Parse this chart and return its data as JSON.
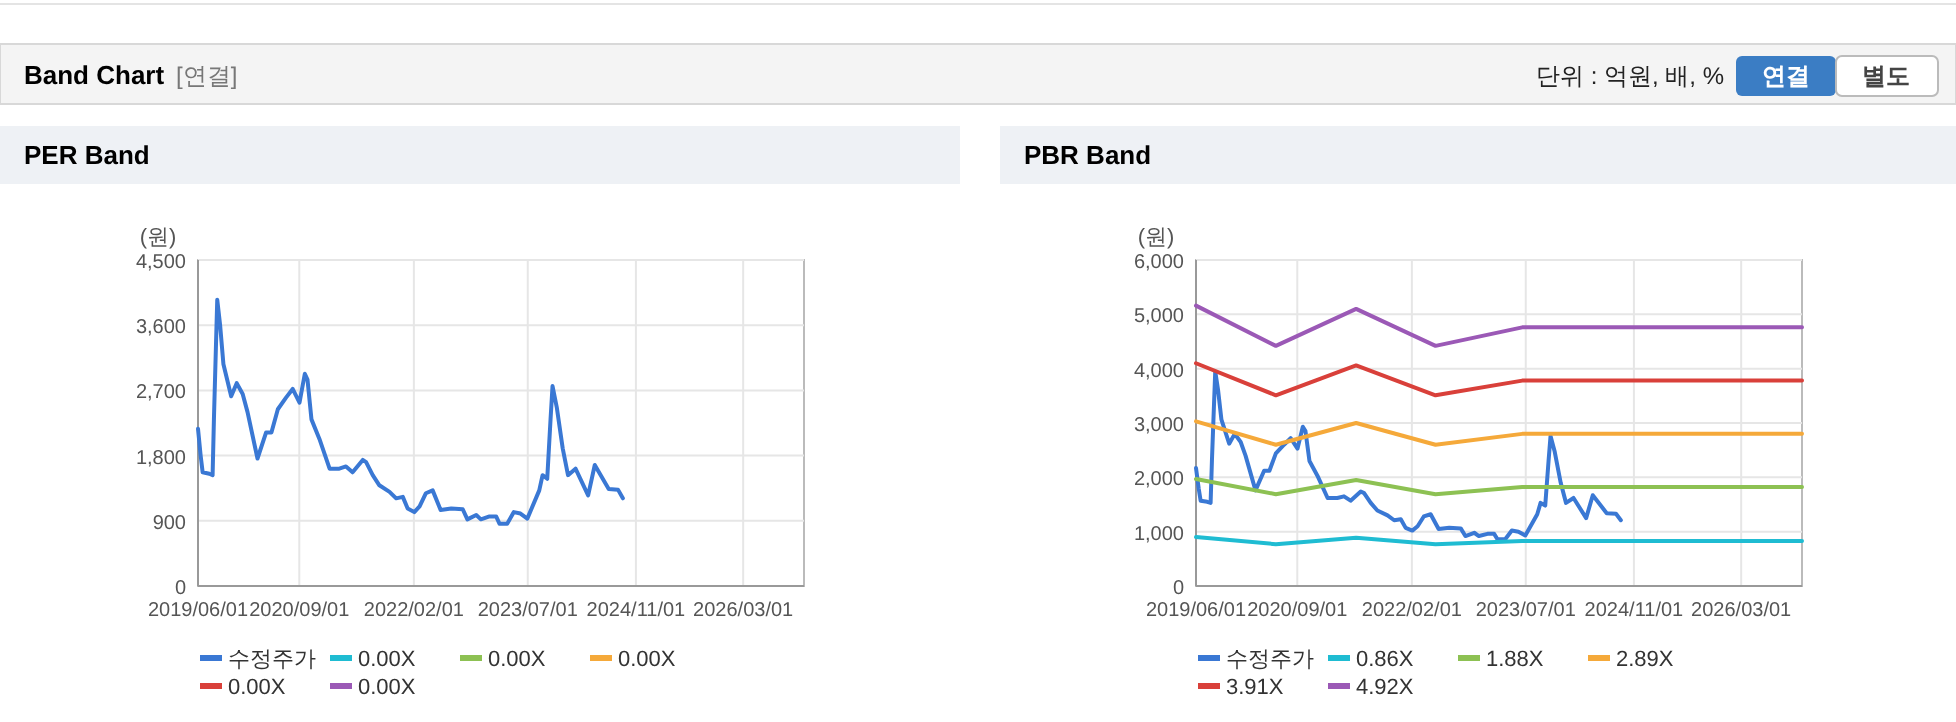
{
  "chart_data": [
    {
      "type": "other",
      "title": "Band Chart",
      "annotations": [
        "[연결]",
        "단위 : 억원, 배, %",
        "연결",
        "별도"
      ]
    },
    {
      "type": "line",
      "title": "PER Band",
      "ylabel": "(원)",
      "xlim": [
        "2019-06-01",
        "2026-12-01"
      ],
      "xticks": [
        {
          "value": "2019-06-01",
          "label": "2019/06/01"
        },
        {
          "value": "2020-09-01",
          "label": "2020/09/01"
        },
        {
          "value": "2022-02-01",
          "label": "2022/02/01"
        },
        {
          "value": "2023-07-01",
          "label": "2023/07/01"
        },
        {
          "value": "2024-11-01",
          "label": "2024/11/01"
        },
        {
          "value": "2026-03-01",
          "label": "2026/03/01"
        }
      ],
      "ylim": [
        0,
        4500
      ],
      "yticks": [
        {
          "value": 0,
          "label": "0"
        },
        {
          "value": 900,
          "label": "900"
        },
        {
          "value": 1800,
          "label": "1,800"
        },
        {
          "value": 2700,
          "label": "2,700"
        },
        {
          "value": 3600,
          "label": "3,600"
        },
        {
          "value": 4500,
          "label": "4,500"
        }
      ],
      "grid": true,
      "legend": "bottom",
      "marker": "none",
      "line_style": "solid",
      "x": [
        "2019-06-01",
        "2019-06-13",
        "2019-06-22",
        "2019-07-22",
        "2019-08-06",
        "2019-08-12",
        "2019-08-21",
        "2019-08-27",
        "2019-09-09",
        "2019-09-24",
        "2019-10-29",
        "2019-11-23",
        "2019-12-20",
        "2020-01-11",
        "2020-02-25",
        "2020-04-04",
        "2020-04-28",
        "2020-05-27",
        "2020-07-03",
        "2020-08-02",
        "2020-09-02",
        "2020-09-26",
        "2020-10-08",
        "2020-10-26",
        "2020-12-01",
        "2021-01-16",
        "2021-03-01",
        "2021-03-31",
        "2021-04-30",
        "2021-06-15",
        "2021-06-30",
        "2021-07-30",
        "2021-08-29",
        "2021-10-14",
        "2021-11-13",
        "2021-12-13",
        "2022-01-04",
        "2022-02-03",
        "2022-02-27",
        "2022-03-27",
        "2022-04-27",
        "2022-06-02",
        "2022-07-20",
        "2022-09-10",
        "2022-10-01",
        "2022-11-10",
        "2022-12-01",
        "2023-01-09",
        "2023-02-08",
        "2023-02-23",
        "2023-03-30",
        "2023-04-29",
        "2023-05-29",
        "2023-06-29",
        "2023-08-22",
        "2023-09-06",
        "2023-09-27",
        "2023-10-12",
        "2023-10-21",
        "2023-11-09",
        "2023-12-06",
        "2023-12-30",
        "2024-02-02",
        "2024-03-30",
        "2024-04-29",
        "2024-07-01",
        "2024-08-12",
        "2024-09-03"
      ],
      "series": [
        {
          "name": "수정주가",
          "color": "#3a78d4",
          "values": [
            2170,
            1800,
            1570,
            1550,
            1530,
            2300,
            3300,
            3950,
            3600,
            3060,
            2620,
            2800,
            2650,
            2400,
            1760,
            2120,
            2120,
            2440,
            2600,
            2720,
            2530,
            2930,
            2850,
            2300,
            2030,
            1620,
            1620,
            1650,
            1570,
            1740,
            1710,
            1530,
            1390,
            1300,
            1210,
            1230,
            1070,
            1020,
            1100,
            1280,
            1320,
            1050,
            1070,
            1060,
            920,
            980,
            920,
            960,
            960,
            860,
            860,
            1020,
            1000,
            930,
            1320,
            1530,
            1480,
            2300,
            2760,
            2470,
            1900,
            1530,
            1620,
            1250,
            1670,
            1340,
            1330,
            1210
          ]
        },
        {
          "name": "0.00X",
          "color": "#1fbcd2",
          "values": [
            null,
            null,
            null,
            null,
            null,
            null,
            null,
            null,
            null,
            null,
            null,
            null,
            null,
            null,
            null,
            null,
            null,
            null,
            null,
            null,
            null,
            null,
            null,
            null,
            null,
            null,
            null,
            null,
            null,
            null,
            null,
            null,
            null,
            null,
            null,
            null,
            null,
            null,
            null,
            null,
            null,
            null,
            null,
            null,
            null,
            null,
            null,
            null,
            null,
            null,
            null,
            null,
            null,
            null,
            null,
            null,
            null,
            null,
            null,
            null,
            null,
            null,
            null,
            null,
            null,
            null,
            null,
            null
          ]
        },
        {
          "name": "0.00X",
          "color": "#8dc153",
          "values": [
            null,
            null,
            null,
            null,
            null,
            null,
            null,
            null,
            null,
            null,
            null,
            null,
            null,
            null,
            null,
            null,
            null,
            null,
            null,
            null,
            null,
            null,
            null,
            null,
            null,
            null,
            null,
            null,
            null,
            null,
            null,
            null,
            null,
            null,
            null,
            null,
            null,
            null,
            null,
            null,
            null,
            null,
            null,
            null,
            null,
            null,
            null,
            null,
            null,
            null,
            null,
            null,
            null,
            null,
            null,
            null,
            null,
            null,
            null,
            null,
            null,
            null,
            null,
            null,
            null,
            null,
            null,
            null
          ]
        },
        {
          "name": "0.00X",
          "color": "#f5a93a",
          "values": [
            null,
            null,
            null,
            null,
            null,
            null,
            null,
            null,
            null,
            null,
            null,
            null,
            null,
            null,
            null,
            null,
            null,
            null,
            null,
            null,
            null,
            null,
            null,
            null,
            null,
            null,
            null,
            null,
            null,
            null,
            null,
            null,
            null,
            null,
            null,
            null,
            null,
            null,
            null,
            null,
            null,
            null,
            null,
            null,
            null,
            null,
            null,
            null,
            null,
            null,
            null,
            null,
            null,
            null,
            null,
            null,
            null,
            null,
            null,
            null,
            null,
            null,
            null,
            null,
            null,
            null,
            null,
            null
          ]
        },
        {
          "name": "0.00X",
          "color": "#d9403a",
          "values": [
            null,
            null,
            null,
            null,
            null,
            null,
            null,
            null,
            null,
            null,
            null,
            null,
            null,
            null,
            null,
            null,
            null,
            null,
            null,
            null,
            null,
            null,
            null,
            null,
            null,
            null,
            null,
            null,
            null,
            null,
            null,
            null,
            null,
            null,
            null,
            null,
            null,
            null,
            null,
            null,
            null,
            null,
            null,
            null,
            null,
            null,
            null,
            null,
            null,
            null,
            null,
            null,
            null,
            null,
            null,
            null,
            null,
            null,
            null,
            null,
            null,
            null,
            null,
            null,
            null,
            null,
            null,
            null
          ]
        },
        {
          "name": "0.00X",
          "color": "#9b59b6",
          "values": [
            null,
            null,
            null,
            null,
            null,
            null,
            null,
            null,
            null,
            null,
            null,
            null,
            null,
            null,
            null,
            null,
            null,
            null,
            null,
            null,
            null,
            null,
            null,
            null,
            null,
            null,
            null,
            null,
            null,
            null,
            null,
            null,
            null,
            null,
            null,
            null,
            null,
            null,
            null,
            null,
            null,
            null,
            null,
            null,
            null,
            null,
            null,
            null,
            null,
            null,
            null,
            null,
            null,
            null,
            null,
            null,
            null,
            null,
            null,
            null,
            null,
            null,
            null,
            null,
            null,
            null,
            null,
            null
          ]
        }
      ]
    },
    {
      "type": "line",
      "title": "PBR Band",
      "ylabel": "(원)",
      "xlim": [
        "2019-06-01",
        "2026-12-01"
      ],
      "xticks": [
        {
          "value": "2019-06-01",
          "label": "2019/06/01"
        },
        {
          "value": "2020-09-01",
          "label": "2020/09/01"
        },
        {
          "value": "2022-02-01",
          "label": "2022/02/01"
        },
        {
          "value": "2023-07-01",
          "label": "2023/07/01"
        },
        {
          "value": "2024-11-01",
          "label": "2024/11/01"
        },
        {
          "value": "2026-03-01",
          "label": "2026/03/01"
        }
      ],
      "ylim": [
        0,
        6000
      ],
      "yticks": [
        {
          "value": 0,
          "label": "0"
        },
        {
          "value": 1000,
          "label": "1,000"
        },
        {
          "value": 2000,
          "label": "2,000"
        },
        {
          "value": 3000,
          "label": "3,000"
        },
        {
          "value": 4000,
          "label": "4,000"
        },
        {
          "value": 5000,
          "label": "5,000"
        },
        {
          "value": 6000,
          "label": "6,000"
        }
      ],
      "grid": true,
      "legend": "bottom",
      "marker": "none",
      "line_style": "solid",
      "x": [
        "2019-06-01",
        "2019-06-13",
        "2019-06-22",
        "2019-07-22",
        "2019-08-06",
        "2019-08-12",
        "2019-08-21",
        "2019-08-27",
        "2019-09-09",
        "2019-09-24",
        "2019-10-29",
        "2019-11-23",
        "2019-12-20",
        "2020-01-11",
        "2020-02-25",
        "2020-04-04",
        "2020-04-28",
        "2020-05-27",
        "2020-07-03",
        "2020-08-02",
        "2020-09-02",
        "2020-09-26",
        "2020-10-08",
        "2020-10-26",
        "2020-12-01",
        "2021-01-16",
        "2021-03-01",
        "2021-03-31",
        "2021-04-30",
        "2021-06-15",
        "2021-06-30",
        "2021-07-30",
        "2021-08-29",
        "2021-10-14",
        "2021-11-13",
        "2021-12-13",
        "2022-01-04",
        "2022-02-03",
        "2022-02-27",
        "2022-03-27",
        "2022-04-27",
        "2022-06-02",
        "2022-07-20",
        "2022-09-10",
        "2022-10-01",
        "2022-11-10",
        "2022-12-01",
        "2023-01-09",
        "2023-02-08",
        "2023-02-23",
        "2023-03-30",
        "2023-04-29",
        "2023-05-29",
        "2023-06-29",
        "2023-08-22",
        "2023-09-06",
        "2023-09-27",
        "2023-10-12",
        "2023-10-21",
        "2023-11-09",
        "2023-12-06",
        "2023-12-30",
        "2024-02-02",
        "2024-03-30",
        "2024-04-29",
        "2024-07-01",
        "2024-08-12",
        "2024-09-03"
      ],
      "series": [
        {
          "name": "수정주가",
          "color": "#3a78d4",
          "values": [
            2170,
            1800,
            1570,
            1550,
            1530,
            2300,
            3300,
            3950,
            3600,
            3060,
            2620,
            2800,
            2650,
            2400,
            1760,
            2120,
            2120,
            2440,
            2600,
            2720,
            2530,
            2930,
            2850,
            2300,
            2030,
            1620,
            1620,
            1650,
            1570,
            1740,
            1710,
            1530,
            1390,
            1300,
            1210,
            1230,
            1070,
            1020,
            1100,
            1280,
            1320,
            1050,
            1070,
            1060,
            920,
            980,
            920,
            960,
            960,
            860,
            860,
            1020,
            1000,
            930,
            1320,
            1530,
            1480,
            2300,
            2760,
            2470,
            1900,
            1530,
            1620,
            1250,
            1670,
            1340,
            1330,
            1210
          ]
        },
        {
          "name": "0.86X",
          "color": "#1fbcd2",
          "x": [
            "2019-06-01",
            "2020-05-27",
            "2021-05-25",
            "2022-05-19",
            "2023-06-15",
            "2026-12-01"
          ],
          "values": [
            900,
            770,
            890,
            770,
            830,
            830
          ]
        },
        {
          "name": "1.88X",
          "color": "#8dc153",
          "x": [
            "2019-06-01",
            "2020-05-27",
            "2021-05-25",
            "2022-05-19",
            "2023-06-15",
            "2026-12-01"
          ],
          "values": [
            1970,
            1690,
            1950,
            1690,
            1820,
            1820
          ]
        },
        {
          "name": "2.89X",
          "color": "#f5a93a",
          "x": [
            "2019-06-01",
            "2020-05-27",
            "2021-05-25",
            "2022-05-19",
            "2023-06-15",
            "2026-12-01"
          ],
          "values": [
            3030,
            2600,
            3000,
            2600,
            2800,
            2800
          ]
        },
        {
          "name": "3.91X",
          "color": "#d9403a",
          "x": [
            "2019-06-01",
            "2020-05-27",
            "2021-05-25",
            "2022-05-19",
            "2023-06-15",
            "2026-12-01"
          ],
          "values": [
            4100,
            3510,
            4060,
            3510,
            3780,
            3780
          ]
        },
        {
          "name": "4.92X",
          "color": "#9b59b6",
          "x": [
            "2019-06-01",
            "2020-05-27",
            "2021-05-25",
            "2022-05-19",
            "2023-06-15",
            "2026-12-01"
          ],
          "values": [
            5160,
            4420,
            5100,
            4420,
            4760,
            4760
          ]
        }
      ]
    }
  ]
}
